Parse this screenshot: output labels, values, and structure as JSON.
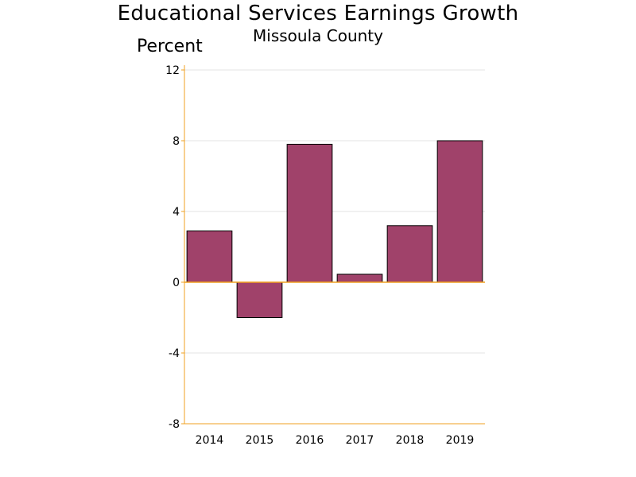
{
  "chart_data": {
    "type": "bar",
    "title": "Educational Services Earnings Growth",
    "subtitle": "Missoula County",
    "ylabel": "Percent",
    "xlabel": "",
    "categories": [
      "2014",
      "2015",
      "2016",
      "2017",
      "2018",
      "2019"
    ],
    "values": [
      2.9,
      -2.0,
      7.8,
      0.45,
      3.2,
      8.0
    ],
    "ylim": [
      -8,
      12
    ],
    "yticks": [
      -8,
      -4,
      0,
      4,
      8,
      12
    ],
    "grid": true,
    "legend": "none"
  },
  "colors": {
    "bar_fill": "#a0426a",
    "bar_stroke": "#000000",
    "axis": "#f0a020",
    "grid": "#e3e3e3"
  }
}
